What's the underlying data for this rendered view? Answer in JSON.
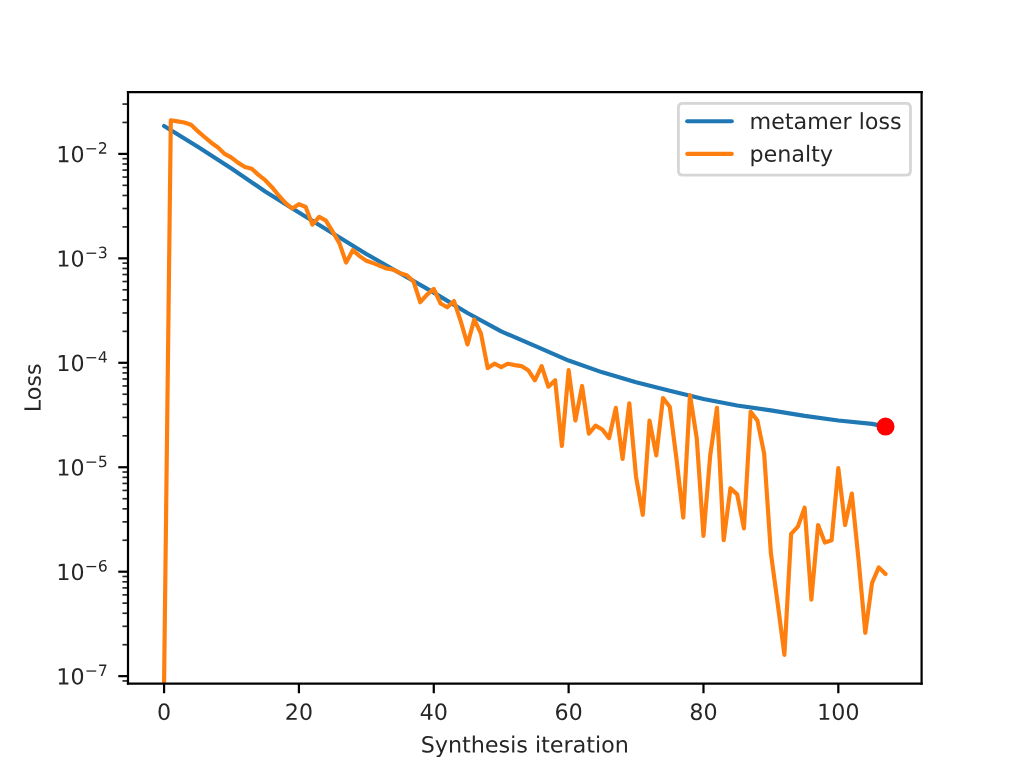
{
  "chart_data": {
    "type": "line",
    "xlabel": "Synthesis iteration",
    "ylabel": "Loss",
    "log": "y",
    "legend": "top right",
    "grid": false,
    "xlim": [
      -5.35,
      112.35
    ],
    "xticks": [
      0,
      20,
      40,
      60,
      80,
      100
    ],
    "ylim": [
      8.5e-08,
      0.039
    ],
    "yticks": [
      {
        "value": 1e-07,
        "label": "10$^{−7}$"
      },
      {
        "value": 1e-06,
        "label": "10$^{−6}$"
      },
      {
        "value": 1e-05,
        "label": "10$^{−5}$"
      },
      {
        "value": 0.0001,
        "label": "10$^{−4}$"
      },
      {
        "value": 0.001,
        "label": "10$^{−3}$"
      },
      {
        "value": 0.01,
        "label": "10$^{−2}$"
      }
    ],
    "series": [
      {
        "name": "metamer loss",
        "color": "#1f77b4",
        "x": [
          0,
          5,
          10,
          15,
          20,
          25,
          30,
          35,
          40,
          45,
          50,
          55,
          60,
          65,
          70,
          75,
          80,
          85,
          90,
          95,
          100,
          105,
          107
        ],
        "values": [
          0.0185,
          0.0117,
          0.00724,
          0.00437,
          0.00275,
          0.00174,
          0.0011,
          0.00072,
          0.00047,
          0.0003,
          0.0002,
          0.000145,
          0.000105,
          8.1e-05,
          6.5e-05,
          5.4e-05,
          4.5e-05,
          3.9e-05,
          3.5e-05,
          3.1e-05,
          2.8e-05,
          2.6e-05,
          2.45e-05
        ]
      },
      {
        "name": "penalty",
        "color": "#ff7f0e",
        "x": [
          0,
          1,
          2,
          3,
          4,
          5,
          6,
          7,
          8,
          9,
          10,
          11,
          12,
          13,
          14,
          15,
          16,
          17,
          18,
          19,
          20,
          21,
          22,
          23,
          24,
          25,
          26,
          27,
          28,
          29,
          30,
          31,
          32,
          33,
          34,
          35,
          36,
          37,
          38,
          39,
          40,
          41,
          42,
          43,
          44,
          45,
          46,
          47,
          48,
          49,
          50,
          51,
          52,
          53,
          54,
          55,
          56,
          57,
          58,
          59,
          60,
          61,
          62,
          63,
          64,
          65,
          66,
          67,
          68,
          69,
          70,
          71,
          72,
          73,
          74,
          75,
          76,
          77,
          78,
          79,
          80,
          81,
          82,
          83,
          84,
          85,
          86,
          87,
          88,
          89,
          90,
          91,
          92,
          93,
          94,
          95,
          96,
          97,
          98,
          99,
          100,
          101,
          102,
          103,
          104,
          105,
          106,
          107
        ],
        "values": [
          8.5e-08,
          0.021,
          0.0205,
          0.02,
          0.019,
          0.0165,
          0.0145,
          0.0128,
          0.0115,
          0.01,
          0.0092,
          0.0082,
          0.0075,
          0.0072,
          0.0063,
          0.0056,
          0.0048,
          0.004,
          0.0034,
          0.003,
          0.0033,
          0.0031,
          0.0021,
          0.0025,
          0.0023,
          0.0018,
          0.0014,
          0.00091,
          0.0012,
          0.00105,
          0.00095,
          0.0009,
          0.00085,
          0.0008,
          0.00078,
          0.00072,
          0.00069,
          0.0006,
          0.00038,
          0.00045,
          0.00051,
          0.00037,
          0.00034,
          0.00039,
          0.00025,
          0.00015,
          0.00026,
          0.00019,
          8.9e-05,
          9.8e-05,
          9.1e-05,
          9.8e-05,
          9.5e-05,
          9.3e-05,
          8.5e-05,
          6.8e-05,
          9.3e-05,
          5.9e-05,
          6.8e-05,
          1.6e-05,
          8.5e-05,
          2.8e-05,
          6e-05,
          2.1e-05,
          2.5e-05,
          2.3e-05,
          1.9e-05,
          3.7e-05,
          1.2e-05,
          4.1e-05,
          8.1e-06,
          3.5e-06,
          2.8e-05,
          1.3e-05,
          4.6e-05,
          3.8e-05,
          1.2e-05,
          3.3e-06,
          4.9e-05,
          1.9e-05,
          2.2e-06,
          1.3e-05,
          3.7e-05,
          2e-06,
          6.3e-06,
          5.5e-06,
          2.6e-06,
          3.4e-05,
          2.8e-05,
          1.35e-05,
          1.5e-06,
          5e-07,
          1.6e-07,
          2.3e-06,
          2.7e-06,
          4.1e-06,
          5.4e-07,
          2.8e-06,
          1.9e-06,
          2e-06,
          9.8e-06,
          2.8e-06,
          5.6e-06,
          1.3e-06,
          2.6e-07,
          7.8e-07,
          1.1e-06,
          9.5e-07
        ]
      },
      {
        "color": "#ff0000",
        "type": "scatter",
        "x": [
          107
        ],
        "values": [
          2.45e-05
        ]
      }
    ]
  }
}
